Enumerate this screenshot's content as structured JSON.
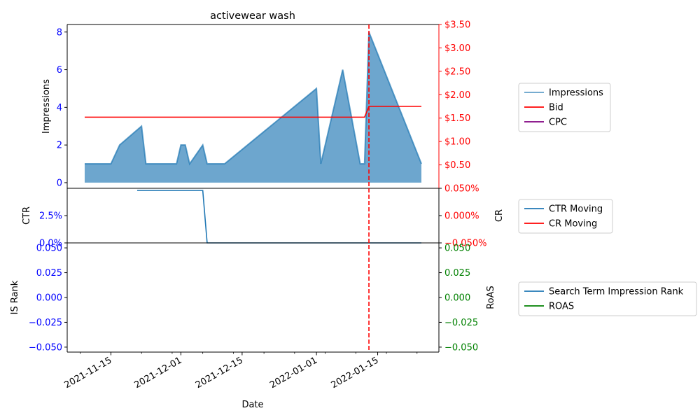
{
  "colors": {
    "impressions": "#1f77b4",
    "bid": "#ff0000",
    "cpc": "#800080",
    "ctr": "#1f77b4",
    "cr": "#ff0000",
    "is_rank": "#1f77b4",
    "roas": "#008000",
    "left_tick": "#0000ff",
    "event_line": "#ff0000"
  },
  "chart_data": [
    {
      "type": "area",
      "panel": "top",
      "title": "activewear wash",
      "ylabel": "Impressions",
      "y2label": "",
      "ylim": [
        -0.3,
        8.4
      ],
      "yticks": [
        "0",
        "2",
        "4",
        "6",
        "8"
      ],
      "ytick_values": [
        0,
        2,
        4,
        6,
        8
      ],
      "y2lim": [
        0,
        3.5
      ],
      "y2ticks": [
        "$0.50",
        "$1.00",
        "$1.50",
        "$2.00",
        "$2.50",
        "$3.00",
        "$3.50"
      ],
      "y2tick_values": [
        0.5,
        1.0,
        1.5,
        2.0,
        2.5,
        3.0,
        3.5
      ],
      "series": [
        {
          "name": "Impressions",
          "x": [
            "2021-11-09",
            "2021-11-15",
            "2021-11-17",
            "2021-11-22",
            "2021-11-23",
            "2021-11-30",
            "2021-12-01",
            "2021-12-02",
            "2021-12-03",
            "2021-12-06",
            "2021-12-07",
            "2021-12-11",
            "2022-01-01",
            "2022-01-02",
            "2022-01-07",
            "2022-01-11",
            "2022-01-12",
            "2022-01-13",
            "2022-01-25"
          ],
          "values": [
            1,
            1,
            2,
            3,
            1,
            1,
            2,
            2,
            1,
            2,
            1,
            1,
            5,
            1,
            6,
            1,
            1,
            8,
            1
          ]
        },
        {
          "name": "Bid",
          "x": [
            "2021-11-09",
            "2022-01-12",
            "2022-01-13",
            "2022-01-25"
          ],
          "values": [
            1.52,
            1.52,
            1.75,
            1.75
          ]
        },
        {
          "name": "CPC",
          "x": [],
          "values": []
        }
      ],
      "legend": [
        "Impressions",
        "Bid",
        "CPC"
      ],
      "grid": false
    },
    {
      "type": "line",
      "panel": "middle",
      "ylabel": "CTR",
      "y2label": "CR",
      "ylim": [
        0,
        5.0
      ],
      "yticks": [
        "0.0%",
        "2.5%"
      ],
      "ytick_values": [
        0,
        2.5
      ],
      "y2lim": [
        -0.05,
        0.05
      ],
      "y2ticks": [
        "−0.050%",
        "0.000%",
        "0.050%"
      ],
      "y2tick_values": [
        -0.05,
        0.0,
        0.05
      ],
      "series": [
        {
          "name": "CTR Moving",
          "x": [
            "2021-11-21",
            "2021-12-06",
            "2021-12-07",
            "2022-01-25"
          ],
          "values": [
            4.8,
            4.8,
            0,
            0
          ]
        },
        {
          "name": "CR Moving",
          "x": [],
          "values": []
        }
      ],
      "legend": [
        "CTR Moving",
        "CR Moving"
      ],
      "grid": false
    },
    {
      "type": "line",
      "panel": "bottom",
      "ylabel": "IS Rank",
      "y2label": "RoAS",
      "xlabel": "Date",
      "ylim": [
        -0.055,
        0.055
      ],
      "yticks": [
        "−0.050",
        "−0.025",
        "0.000",
        "0.025",
        "0.050"
      ],
      "ytick_values": [
        -0.05,
        -0.025,
        0.0,
        0.025,
        0.05
      ],
      "y2lim": [
        -0.055,
        0.055
      ],
      "y2ticks": [
        "−0.050",
        "−0.025",
        "0.000",
        "0.025",
        "0.050"
      ],
      "y2tick_values": [
        -0.05,
        -0.025,
        0.0,
        0.025,
        0.05
      ],
      "xlim": [
        "2021-11-05",
        "2022-01-29"
      ],
      "xticks": [
        "2021-11-15",
        "2021-12-01",
        "2021-12-15",
        "2022-01-01",
        "2022-01-15"
      ],
      "xtick_dates": [
        "2021-11-15",
        "2021-12-01",
        "2021-12-15",
        "2022-01-01",
        "2022-01-15"
      ],
      "minor_xtick_dates": [
        "2021-11-08",
        "2021-11-22",
        "2021-11-29",
        "2021-12-06",
        "2021-12-13",
        "2021-12-20",
        "2021-12-27",
        "2022-01-03",
        "2022-01-10",
        "2022-01-17",
        "2022-01-24"
      ],
      "series": [
        {
          "name": "Search Term Impression Rank",
          "x": [],
          "values": []
        },
        {
          "name": "ROAS",
          "x": [],
          "values": []
        }
      ],
      "legend": [
        "Search Term Impression Rank",
        "ROAS"
      ],
      "grid": false
    }
  ],
  "event_line_date": "2022-01-13"
}
